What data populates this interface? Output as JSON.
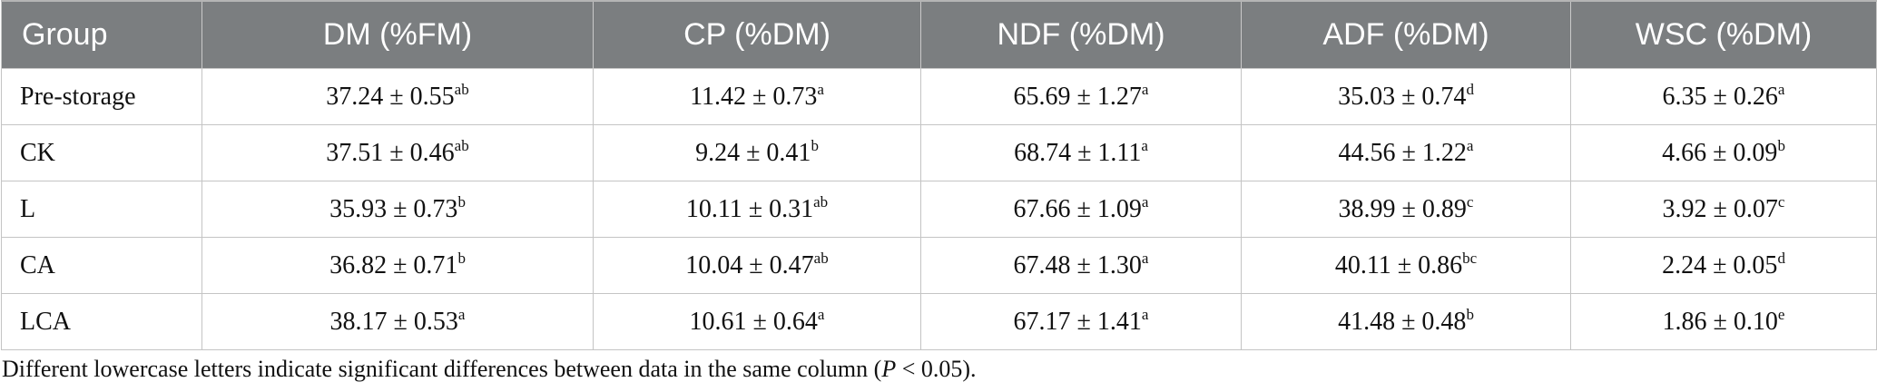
{
  "table": {
    "headers": [
      "Group",
      "DM (%FM)",
      "CP (%DM)",
      "NDF (%DM)",
      "ADF (%DM)",
      "WSC (%DM)"
    ],
    "rows": [
      {
        "group": "Pre-storage",
        "cells": [
          {
            "value": "37.24 ± 0.55",
            "sup": "ab"
          },
          {
            "value": "11.42 ± 0.73",
            "sup": "a"
          },
          {
            "value": "65.69 ± 1.27",
            "sup": "a"
          },
          {
            "value": "35.03 ± 0.74",
            "sup": "d"
          },
          {
            "value": "6.35 ± 0.26",
            "sup": "a"
          }
        ]
      },
      {
        "group": "CK",
        "cells": [
          {
            "value": "37.51 ± 0.46",
            "sup": "ab"
          },
          {
            "value": "9.24 ± 0.41",
            "sup": "b"
          },
          {
            "value": "68.74 ± 1.11",
            "sup": "a"
          },
          {
            "value": "44.56 ± 1.22",
            "sup": "a"
          },
          {
            "value": "4.66 ± 0.09",
            "sup": "b"
          }
        ]
      },
      {
        "group": "L",
        "cells": [
          {
            "value": "35.93 ± 0.73",
            "sup": "b"
          },
          {
            "value": "10.11 ± 0.31",
            "sup": "ab"
          },
          {
            "value": "67.66 ± 1.09",
            "sup": "a"
          },
          {
            "value": "38.99 ± 0.89",
            "sup": "c"
          },
          {
            "value": "3.92 ± 0.07",
            "sup": "c"
          }
        ]
      },
      {
        "group": "CA",
        "cells": [
          {
            "value": "36.82 ± 0.71",
            "sup": "b"
          },
          {
            "value": "10.04 ± 0.47",
            "sup": "ab"
          },
          {
            "value": "67.48 ± 1.30",
            "sup": "a"
          },
          {
            "value": "40.11 ± 0.86",
            "sup": "bc"
          },
          {
            "value": "2.24 ± 0.05",
            "sup": "d"
          }
        ]
      },
      {
        "group": "LCA",
        "cells": [
          {
            "value": "38.17 ± 0.53",
            "sup": "a"
          },
          {
            "value": "10.61 ± 0.64",
            "sup": "a"
          },
          {
            "value": "67.17 ± 1.41",
            "sup": "a"
          },
          {
            "value": "41.48 ± 0.48",
            "sup": "b"
          },
          {
            "value": "1.86 ± 0.10",
            "sup": "e"
          }
        ]
      }
    ]
  },
  "footnote": {
    "text_before": "Different lowercase letters indicate significant differences between data in the same column (",
    "p_symbol": "P",
    "text_after": " < 0.05)."
  },
  "colors": {
    "header_background": "#7b7e80",
    "header_text": "#ffffff",
    "grid_line": "#c4c4c4"
  }
}
